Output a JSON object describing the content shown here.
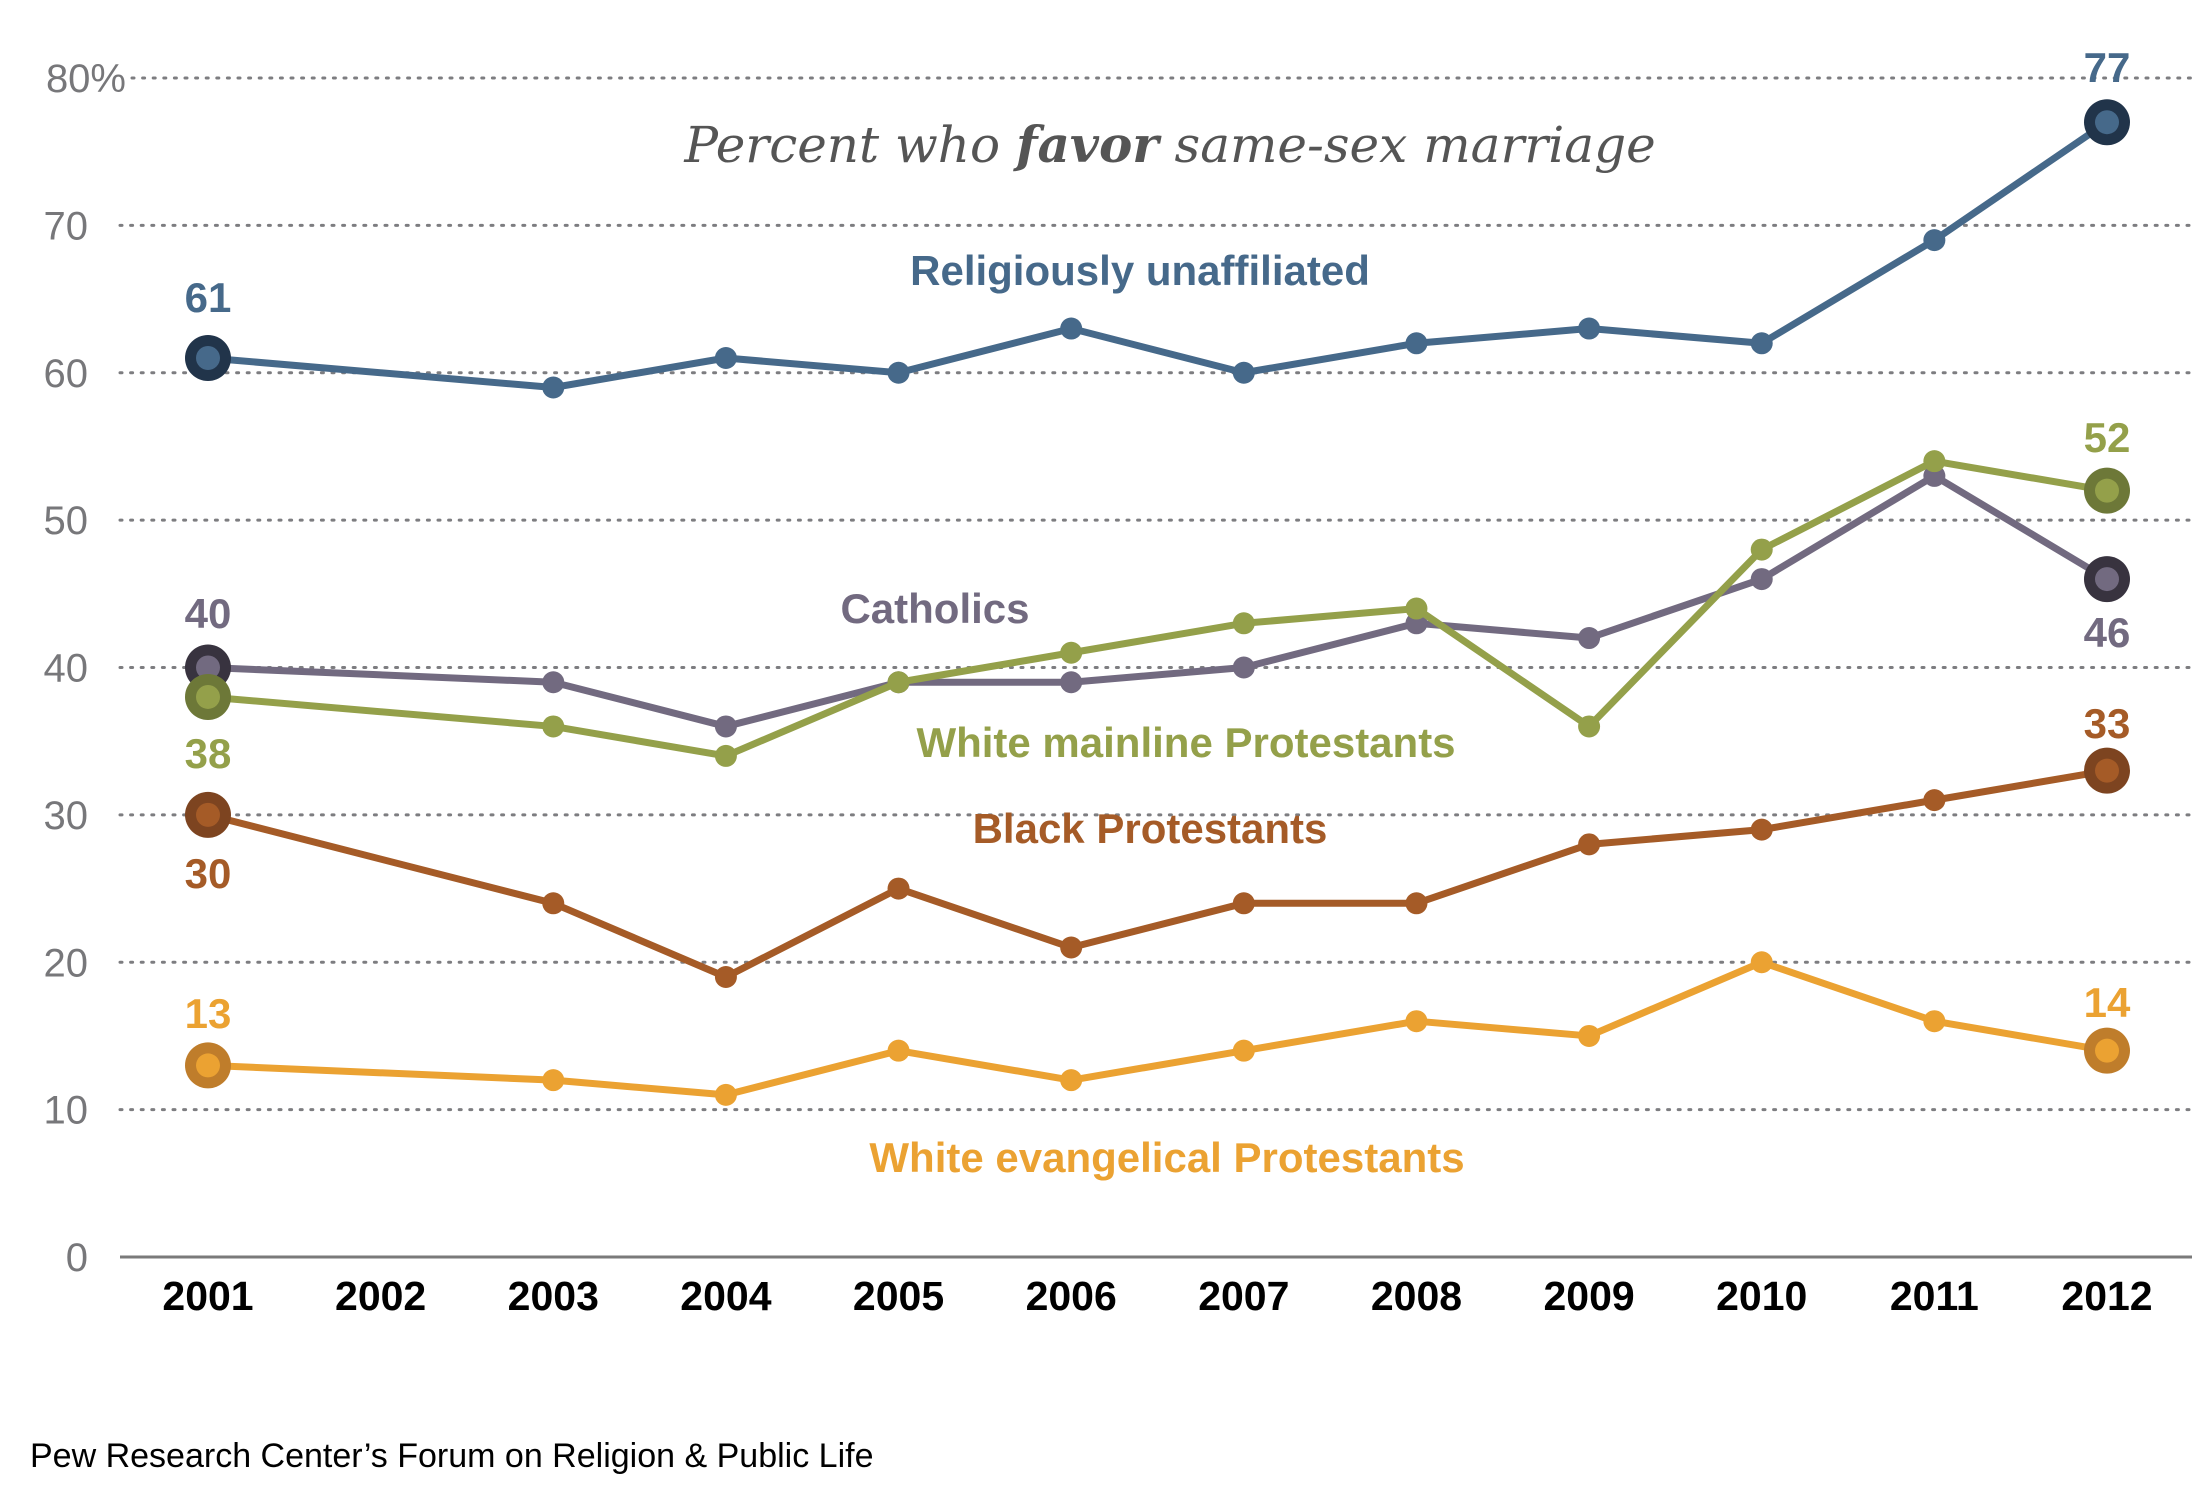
{
  "chart_data": {
    "type": "line",
    "title_parts": [
      {
        "text": "Percent who ",
        "bold": false
      },
      {
        "text": "favor",
        "bold": true
      },
      {
        "text": " same-sex marriage",
        "bold": false
      }
    ],
    "title": "Percent who favor same-sex marriage",
    "xlabel": "",
    "ylabel": "",
    "x_categories": [
      "2001",
      "2002",
      "2003",
      "2004",
      "2005",
      "2006",
      "2007",
      "2008",
      "2009",
      "2010",
      "2011",
      "2012"
    ],
    "x": [
      2001,
      2003,
      2004,
      2005,
      2006,
      2007,
      2008,
      2009,
      2010,
      2011,
      2012
    ],
    "ylim": [
      0,
      80
    ],
    "y_ticks": [
      {
        "value": 0,
        "label": "0"
      },
      {
        "value": 10,
        "label": "10"
      },
      {
        "value": 20,
        "label": "20"
      },
      {
        "value": 30,
        "label": "30"
      },
      {
        "value": 40,
        "label": "40"
      },
      {
        "value": 50,
        "label": "50"
      },
      {
        "value": 60,
        "label": "60"
      },
      {
        "value": 70,
        "label": "70"
      },
      {
        "value": 80,
        "label": "80%"
      }
    ],
    "grid": "dotted-horizontal",
    "legend": "inline-labels",
    "series": [
      {
        "key": "unaffiliated",
        "name": "Religiously unaffiliated",
        "color": "#46698a",
        "endpoint_color": "#21344a",
        "values": [
          61,
          59,
          61,
          60,
          63,
          60,
          62,
          63,
          62,
          69,
          77
        ],
        "start_label": "61",
        "end_label": "77"
      },
      {
        "key": "catholics",
        "name": "Catholics",
        "color": "#726a80",
        "endpoint_color": "#38333f",
        "values": [
          40,
          39,
          36,
          39,
          39,
          40,
          43,
          42,
          46,
          53,
          46
        ],
        "start_label": "40",
        "end_label": "46"
      },
      {
        "key": "mainline",
        "name": "White mainline Protestants",
        "color": "#94a04a",
        "endpoint_color": "#6d7838",
        "values": [
          38,
          36,
          34,
          39,
          41,
          43,
          44,
          36,
          48,
          54,
          52
        ],
        "start_label": "38",
        "end_label": "52"
      },
      {
        "key": "black",
        "name": "Black Protestants",
        "color": "#a55b27",
        "endpoint_color": "#7d4420",
        "values": [
          30,
          24,
          19,
          25,
          21,
          24,
          24,
          28,
          29,
          31,
          33
        ],
        "start_label": "30",
        "end_label": "33"
      },
      {
        "key": "evangelical",
        "name": "White evangelical Protestants",
        "color": "#eba232",
        "endpoint_color": "#bf7d2b",
        "values": [
          13,
          12,
          11,
          14,
          12,
          14,
          16,
          15,
          20,
          16,
          14
        ],
        "start_label": "13",
        "end_label": "14"
      }
    ]
  },
  "footer": {
    "source": "Pew Research Center’s Forum on Religion & Public Life"
  }
}
